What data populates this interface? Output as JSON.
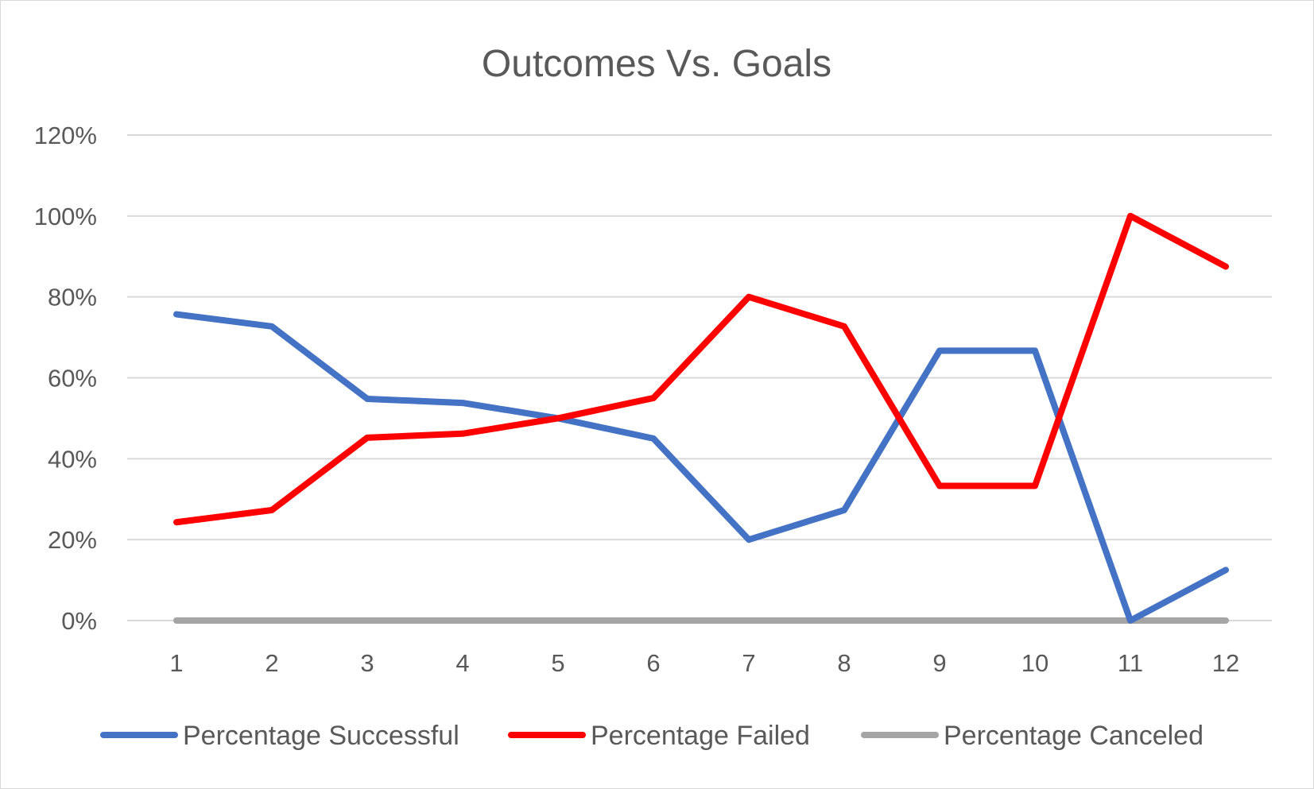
{
  "chart_data": {
    "type": "line",
    "title": "Outcomes Vs. Goals",
    "xlabel": "",
    "ylabel": "",
    "categories": [
      "1",
      "2",
      "3",
      "4",
      "5",
      "6",
      "7",
      "8",
      "9",
      "10",
      "11",
      "12"
    ],
    "y_ticks": [
      "0%",
      "20%",
      "40%",
      "60%",
      "80%",
      "100%",
      "120%"
    ],
    "ylim": [
      0,
      1.2
    ],
    "grid": true,
    "legend_position": "bottom",
    "series": [
      {
        "name": "Percentage Successful",
        "color": "#4472C4",
        "values": [
          0.757,
          0.727,
          0.548,
          0.538,
          0.5,
          0.45,
          0.2,
          0.273,
          0.667,
          0.667,
          0.0,
          0.125
        ]
      },
      {
        "name": "Percentage Failed",
        "color": "#FF0000",
        "values": [
          0.243,
          0.273,
          0.452,
          0.462,
          0.5,
          0.55,
          0.8,
          0.727,
          0.333,
          0.333,
          1.0,
          0.875
        ]
      },
      {
        "name": "Percentage Canceled",
        "color": "#A5A5A5",
        "values": [
          0,
          0,
          0,
          0,
          0,
          0,
          0,
          0,
          0,
          0,
          0,
          0
        ]
      }
    ]
  }
}
